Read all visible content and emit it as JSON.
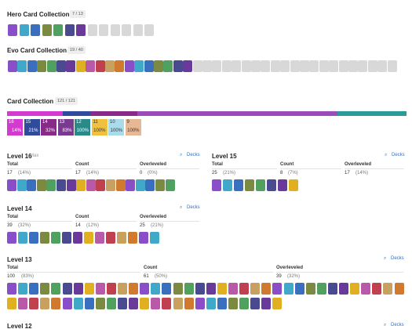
{
  "hero": {
    "title": "Hero Card Collection",
    "badge": "7 / 13"
  },
  "evo": {
    "title": "Evo Card Collection",
    "badge": "19 / 40"
  },
  "collection": {
    "title": "Card Collection",
    "badge": "121 / 121",
    "levels": [
      {
        "level": "16",
        "percent": "14%"
      },
      {
        "level": "15",
        "percent": "21%"
      },
      {
        "level": "14",
        "percent": "32%"
      },
      {
        "level": "13",
        "percent": "83%"
      },
      {
        "level": "12",
        "percent": "100%"
      },
      {
        "level": "11",
        "percent": "100%"
      },
      {
        "level": "10",
        "percent": "100%"
      },
      {
        "level": "9",
        "percent": "100%"
      }
    ]
  },
  "sections": [
    {
      "title": "Level 16",
      "note": "Max",
      "link": "Decks",
      "stats": [
        {
          "label": "Total",
          "value": "17",
          "percent": "(14%)"
        },
        {
          "label": "Count",
          "value": "17",
          "percent": "(14%)"
        },
        {
          "label": "Overleveled",
          "value": "0",
          "percent": "(0%)"
        }
      ]
    },
    {
      "title": "Level 15",
      "link": "Decks",
      "stats": [
        {
          "label": "Total",
          "value": "25",
          "percent": "(21%)"
        },
        {
          "label": "Count",
          "value": "8",
          "percent": "(7%)"
        },
        {
          "label": "Overleveled",
          "value": "17",
          "percent": "(14%)"
        }
      ]
    },
    {
      "title": "Level 14",
      "link": "Decks",
      "stats": [
        {
          "label": "Total",
          "value": "39",
          "percent": "(32%)"
        },
        {
          "label": "Count",
          "value": "14",
          "percent": "(12%)"
        },
        {
          "label": "Overleveled",
          "value": "25",
          "percent": "(21%)"
        }
      ]
    },
    {
      "title": "Level 13",
      "link": "Decks",
      "stats": [
        {
          "label": "Total",
          "value": "100",
          "percent": "(83%)"
        },
        {
          "label": "Count",
          "value": "61",
          "percent": "(50%)"
        },
        {
          "label": "Overleveled",
          "value": "39",
          "percent": "(32%)"
        }
      ]
    },
    {
      "title": "Level 12",
      "link": "Decks"
    }
  ]
}
